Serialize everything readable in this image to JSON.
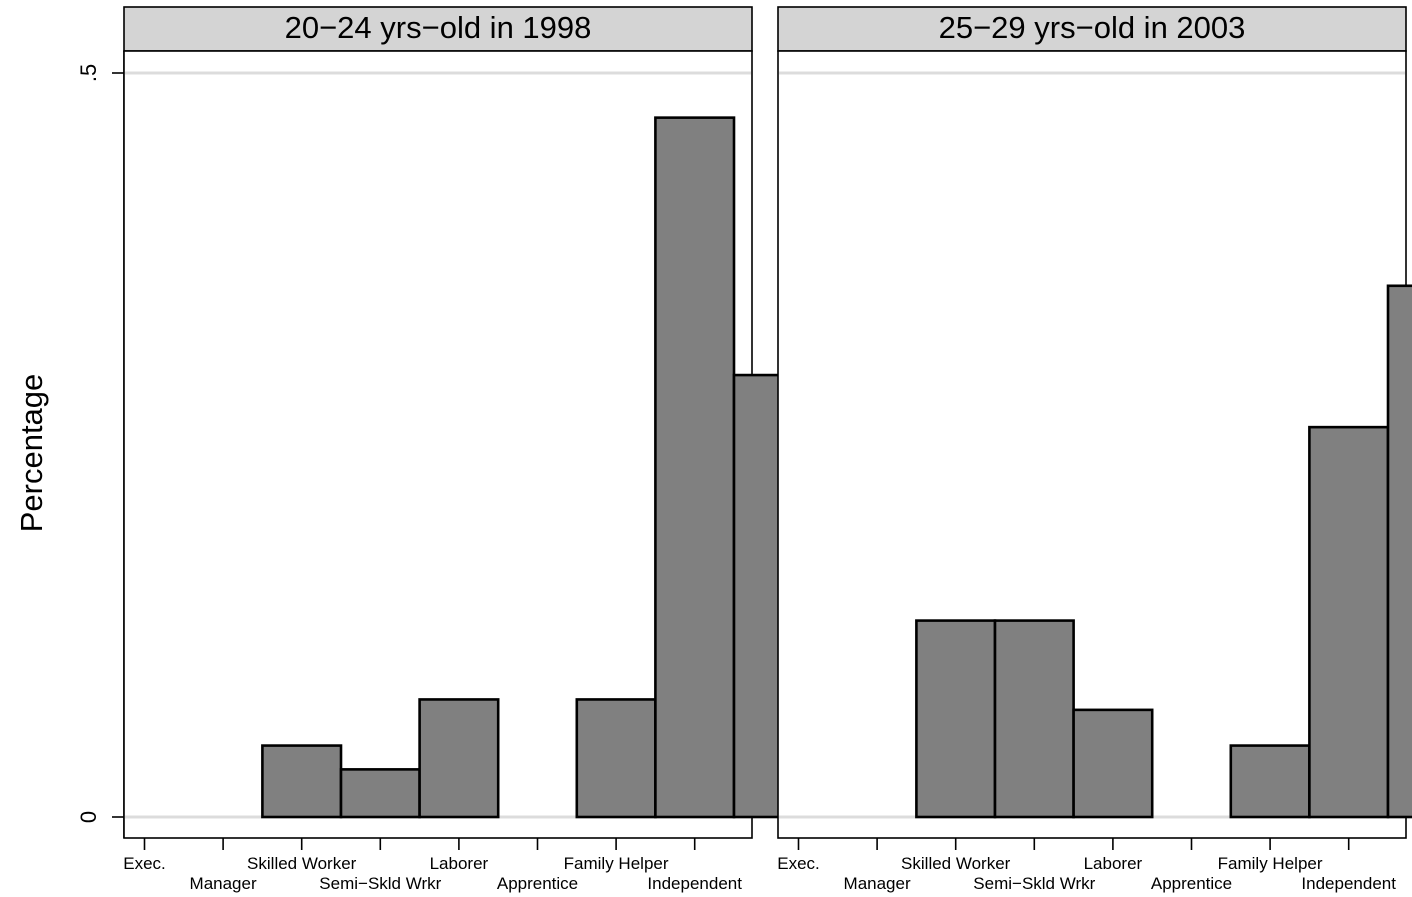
{
  "chart_data": {
    "type": "bar",
    "ylabel": "Percentage",
    "ylim": [
      0,
      0.5
    ],
    "yticks": [
      {
        "value": 0,
        "label": "0"
      },
      {
        "value": 0.5,
        "label": ".5"
      }
    ],
    "categories": [
      "Exec.",
      "Manager",
      "Skilled Worker",
      "Semi−Skld Wrkr",
      "Laborer",
      "Apprentice",
      "Family Helper",
      "Independent"
    ],
    "grid": true,
    "panels": [
      {
        "title": "20−24 yrs−old in 1998",
        "values": [
          0,
          0.048,
          0.032,
          0.079,
          0,
          0.079,
          0.47,
          0.297
        ]
      },
      {
        "title": "25−29 yrs−old in 2003",
        "values": [
          0,
          0.132,
          0.132,
          0.072,
          0,
          0.048,
          0.262,
          0.357
        ]
      }
    ]
  },
  "colors": {
    "bar_fill": "#808080",
    "strip_fill": "#d4d4d4",
    "gridline": "#dcdcdc"
  }
}
